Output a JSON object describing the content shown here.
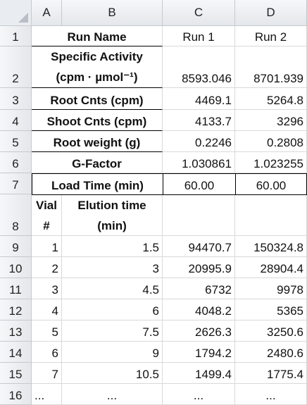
{
  "columns": [
    "A",
    "B",
    "C",
    "D"
  ],
  "rows": [
    "1",
    "2",
    "3",
    "4",
    "5",
    "6",
    "7",
    "8",
    "9",
    "10",
    "11",
    "12",
    "13",
    "14",
    "15",
    "16"
  ],
  "header_row": {
    "label": "Run Name",
    "c": "Run 1",
    "d": "Run 2"
  },
  "specific_activity": {
    "line1": "Specific Activity",
    "line2": "(cpm · µmol⁻¹)",
    "c": "8593.046",
    "d": "8701.939"
  },
  "root_cnts": {
    "label": "Root Cnts (cpm)",
    "c": "4469.1",
    "d": "5264.8"
  },
  "shoot_cnts": {
    "label": "Shoot Cnts (cpm)",
    "c": "4133.7",
    "d": "3296"
  },
  "root_weight": {
    "label": "Root weight (g)",
    "c": "0.2246",
    "d": "0.2808"
  },
  "g_factor": {
    "label": "G-Factor",
    "c": "1.030861",
    "d": "1.023255"
  },
  "load_time": {
    "label": "Load Time (min)",
    "c": "60.00",
    "d": "60.00"
  },
  "subheader": {
    "a1": "Vial",
    "a2": "#",
    "b1": "Elution time",
    "b2": "(min)"
  },
  "data_rows": [
    {
      "vial": "1",
      "time": "1.5",
      "c": "94470.7",
      "d": "150324.8"
    },
    {
      "vial": "2",
      "time": "3",
      "c": "20995.9",
      "d": "28904.4"
    },
    {
      "vial": "3",
      "time": "4.5",
      "c": "6732",
      "d": "9978"
    },
    {
      "vial": "4",
      "time": "6",
      "c": "4048.2",
      "d": "5365"
    },
    {
      "vial": "5",
      "time": "7.5",
      "c": "2626.3",
      "d": "3250.6"
    },
    {
      "vial": "6",
      "time": "9",
      "c": "1794.2",
      "d": "2480.6"
    },
    {
      "vial": "7",
      "time": "10.5",
      "c": "1499.4",
      "d": "1775.4"
    }
  ],
  "ellipsis_row": {
    "a": "...",
    "b": "...",
    "c": "...",
    "d": "..."
  }
}
